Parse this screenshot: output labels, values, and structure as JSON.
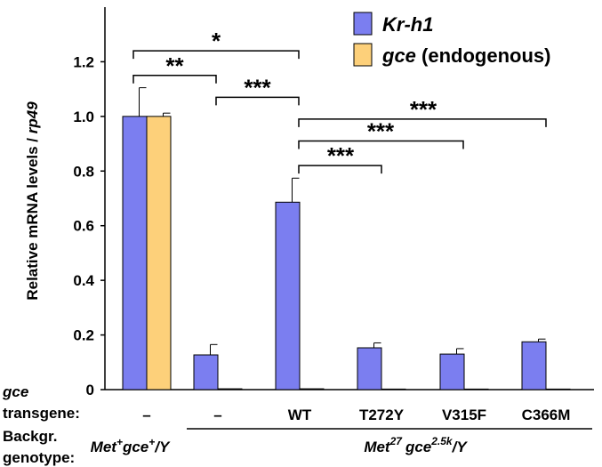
{
  "chart_data": {
    "type": "bar",
    "ylabel_prefix": "Relative mRNA levels / ",
    "ylabel_italic": "rp49",
    "ylim": [
      0,
      1.4
    ],
    "yticks": [
      "0",
      "0.2",
      "0.4",
      "0.6",
      "0.8",
      "1.0",
      "1.2"
    ],
    "ytick_values": [
      0,
      0.2,
      0.4,
      0.6,
      0.8,
      1.0,
      1.2
    ],
    "colors": {
      "kr": "#7b7ef0",
      "gce": "#fdd07a"
    },
    "legend": {
      "kr_label": "Kr-h1",
      "gce_label_italic": "gce",
      "gce_label_rest": " (endogenous)"
    },
    "groups": [
      {
        "transgene": "–",
        "kr": 1.0,
        "kr_err": 0.105,
        "gce": 1.0,
        "gce_err": 0.012
      },
      {
        "transgene": "–",
        "kr": 0.127,
        "kr_err": 0.038,
        "gce": 0.003,
        "gce_err": 0
      },
      {
        "transgene": "WT",
        "kr": 0.686,
        "kr_err": 0.088,
        "gce": 0.003,
        "gce_err": 0
      },
      {
        "transgene": "T272Y",
        "kr": 0.153,
        "kr_err": 0.018,
        "gce": 0.002,
        "gce_err": 0
      },
      {
        "transgene": "V315F",
        "kr": 0.13,
        "kr_err": 0.02,
        "gce": 0.002,
        "gce_err": 0
      },
      {
        "transgene": "C366M",
        "kr": 0.175,
        "kr_err": 0.01,
        "gce": 0.002,
        "gce_err": 0
      }
    ],
    "significance": [
      {
        "from": 0,
        "to": 2,
        "label": "*",
        "level": 1.24
      },
      {
        "from": 0,
        "to": 1,
        "label": "**",
        "level": 1.15
      },
      {
        "from": 1,
        "to": 2,
        "label": "***",
        "level": 1.07
      },
      {
        "from": 2,
        "to": 5,
        "label": "***",
        "level": 0.99
      },
      {
        "from": 2,
        "to": 4,
        "label": "***",
        "level": 0.91
      },
      {
        "from": 2,
        "to": 3,
        "label": "***",
        "level": 0.82
      }
    ],
    "row_labels": {
      "gce_italic": "gce",
      "transgene": "transgene:",
      "backgr": "Backgr.",
      "genotype": "genotype:"
    },
    "genotypes": {
      "control": {
        "a": "Met",
        "a_sup": "+",
        "b": "gce",
        "b_sup": "+",
        "c": "/Y"
      },
      "mutant": {
        "a": "Met",
        "a_sup": "27",
        "b": "gce",
        "b_sup": "2.5k",
        "c": "/Y"
      }
    }
  }
}
